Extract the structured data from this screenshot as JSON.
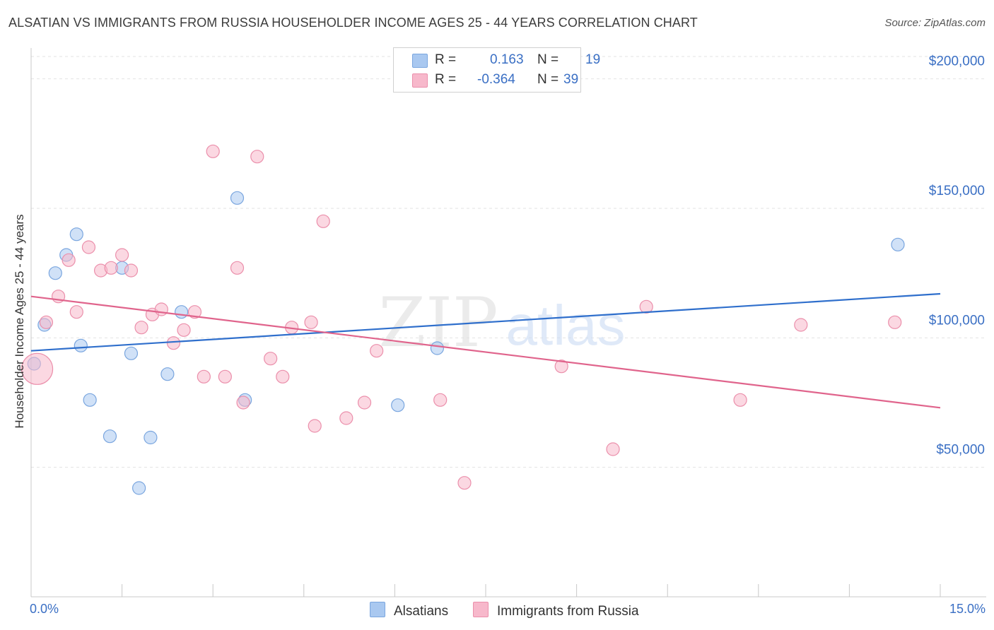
{
  "title": "ALSATIAN VS IMMIGRANTS FROM RUSSIA HOUSEHOLDER INCOME AGES 25 - 44 YEARS CORRELATION CHART",
  "source": "Source: ZipAtlas.com",
  "watermark": {
    "zip": "ZIP",
    "atlas": "atlas"
  },
  "legend": {
    "r_label": "R =",
    "n_label": "N =",
    "series": [
      {
        "name": "Alsatians",
        "r": "0.163",
        "n": "19",
        "color": "#a9c8f0",
        "stroke": "#7aa6df"
      },
      {
        "name": "Immigrants from Russia",
        "r": "-0.364",
        "n": "39",
        "color": "#f7b8cb",
        "stroke": "#eb8fab"
      }
    ]
  },
  "chart_data": {
    "type": "scatter",
    "title": "ALSATIAN VS IMMIGRANTS FROM RUSSIA HOUSEHOLDER INCOME AGES 25 - 44 YEARS CORRELATION CHART",
    "xlabel": "",
    "ylabel": "Householder Income Ages 25 - 44 years",
    "xlim": [
      0,
      15
    ],
    "ylim": [
      0,
      210000
    ],
    "x_tick_labels": [
      "0.0%",
      "15.0%"
    ],
    "y_ticks": [
      50000,
      100000,
      150000,
      200000
    ],
    "y_tick_labels": [
      "$50,000",
      "$100,000",
      "$150,000",
      "$200,000"
    ],
    "series": [
      {
        "name": "Alsatians",
        "color": "#a9c8f0",
        "line_color": "#2f6fcc",
        "trend": [
          [
            0,
            95000
          ],
          [
            15,
            117000
          ]
        ],
        "points": [
          [
            0.05,
            90000
          ],
          [
            0.22,
            105000
          ],
          [
            0.4,
            125000
          ],
          [
            0.58,
            132000
          ],
          [
            0.75,
            140000
          ],
          [
            0.82,
            97000
          ],
          [
            0.97,
            76000
          ],
          [
            1.3,
            62000
          ],
          [
            1.5,
            127000
          ],
          [
            1.65,
            94000
          ],
          [
            1.78,
            42000
          ],
          [
            1.97,
            61500
          ],
          [
            2.25,
            86000
          ],
          [
            2.48,
            110000
          ],
          [
            3.4,
            154000
          ],
          [
            3.53,
            76000
          ],
          [
            6.05,
            74000
          ],
          [
            6.7,
            96000
          ],
          [
            14.3,
            136000
          ]
        ]
      },
      {
        "name": "Immigrants from Russia",
        "color": "#f7b8cb",
        "line_color": "#e0648c",
        "trend": [
          [
            0,
            116000
          ],
          [
            15,
            73000
          ]
        ],
        "points": [
          [
            0.1,
            88000
          ],
          [
            0.25,
            106000
          ],
          [
            0.45,
            116000
          ],
          [
            0.62,
            130000
          ],
          [
            0.75,
            110000
          ],
          [
            0.95,
            135000
          ],
          [
            1.15,
            126000
          ],
          [
            1.32,
            127000
          ],
          [
            1.5,
            132000
          ],
          [
            1.65,
            126000
          ],
          [
            1.82,
            104000
          ],
          [
            2.0,
            109000
          ],
          [
            2.15,
            111000
          ],
          [
            2.35,
            98000
          ],
          [
            2.52,
            103000
          ],
          [
            2.7,
            110000
          ],
          [
            2.85,
            85000
          ],
          [
            3.0,
            172000
          ],
          [
            3.2,
            85000
          ],
          [
            3.4,
            127000
          ],
          [
            3.5,
            75000
          ],
          [
            3.73,
            170000
          ],
          [
            3.95,
            92000
          ],
          [
            4.15,
            85000
          ],
          [
            4.3,
            104000
          ],
          [
            4.62,
            106000
          ],
          [
            4.68,
            66000
          ],
          [
            4.82,
            145000
          ],
          [
            5.2,
            69000
          ],
          [
            5.5,
            75000
          ],
          [
            5.7,
            95000
          ],
          [
            6.75,
            76000
          ],
          [
            7.15,
            44000
          ],
          [
            8.75,
            89000
          ],
          [
            9.6,
            57000
          ],
          [
            10.15,
            112000
          ],
          [
            11.7,
            76000
          ],
          [
            12.7,
            105000
          ],
          [
            14.25,
            106000
          ]
        ]
      }
    ]
  }
}
